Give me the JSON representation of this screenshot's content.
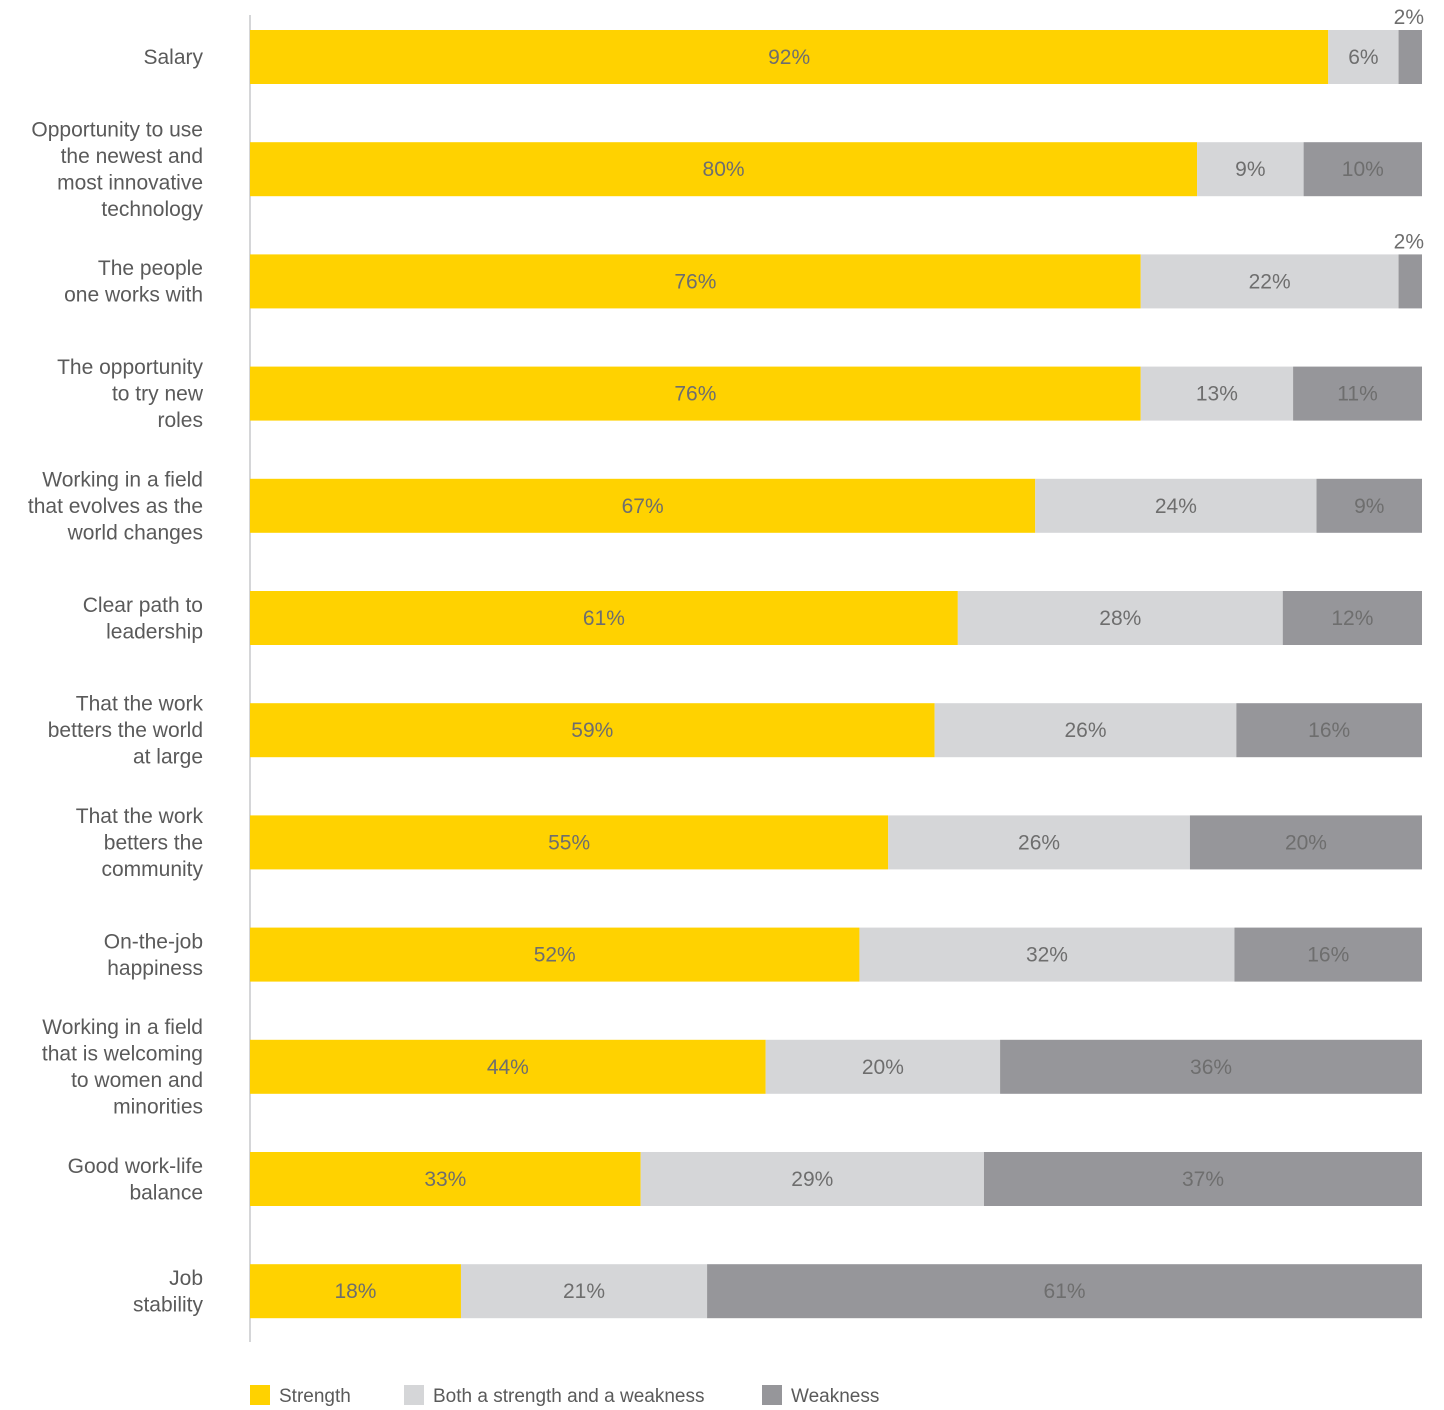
{
  "chart_data": {
    "type": "bar",
    "orientation": "horizontal",
    "stacked": true,
    "categories": [
      "Salary",
      "Opportunity to use the newest and most innovative technology",
      "The people one works with",
      "The opportunity to try new roles",
      "Working in a field that evolves as the world changes",
      "Clear path to leadership",
      "That the work betters the world at large",
      "That the work betters the community",
      "On-the-job happiness",
      "Working in a field that is welcoming to women and minorities",
      "Good work-life balance",
      "Job stability"
    ],
    "category_lines": [
      [
        "Salary"
      ],
      [
        "Opportunity to use",
        "the newest and",
        "most innovative",
        "technology"
      ],
      [
        "The people",
        "one works with"
      ],
      [
        "The opportunity",
        "to try new",
        "roles"
      ],
      [
        "Working in a field",
        "that evolves as the",
        "world changes"
      ],
      [
        "Clear path to",
        "leadership"
      ],
      [
        "That the work",
        "betters the world",
        "at large"
      ],
      [
        "That the work",
        "betters the",
        "community"
      ],
      [
        "On-the-job",
        "happiness"
      ],
      [
        "Working in a field",
        "that is welcoming",
        "to women and",
        "minorities"
      ],
      [
        "Good work-life",
        "balance"
      ],
      [
        "Job",
        "stability"
      ]
    ],
    "series": [
      {
        "name": "Strength",
        "color": "#FFD200",
        "values": [
          92,
          80,
          76,
          76,
          67,
          61,
          59,
          55,
          52,
          44,
          33,
          18
        ]
      },
      {
        "name": "Both a strength and a weakness",
        "color": "#D5D6D8",
        "values": [
          6,
          9,
          22,
          13,
          24,
          28,
          26,
          26,
          32,
          20,
          29,
          21
        ]
      },
      {
        "name": "Weakness",
        "color": "#96969A",
        "values": [
          2,
          10,
          2,
          11,
          9,
          12,
          16,
          20,
          16,
          36,
          37,
          61
        ]
      }
    ],
    "value_suffix": "%",
    "xlim": [
      0,
      100
    ],
    "grid": false,
    "legend_position": "bottom-left",
    "label_color": "#5a5a5a",
    "data_label_color": "#6e6e6e"
  }
}
